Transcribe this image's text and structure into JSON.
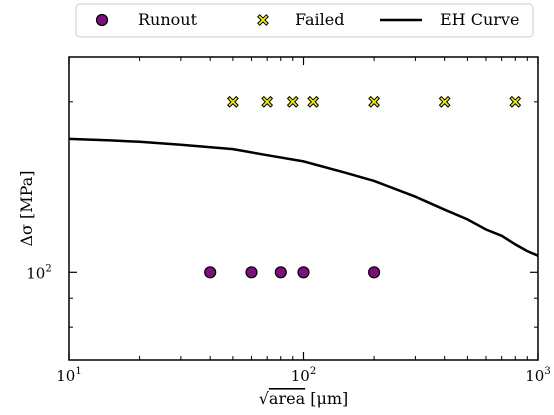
{
  "chart_data": {
    "type": "scatter",
    "x_scale": "log",
    "y_scale": "log",
    "xlim": [
      10,
      1000
    ],
    "ylim": [
      70,
      240
    ],
    "xlabel_prefix": "√",
    "xlabel_main": "area",
    "xlabel_unit": " [μm]",
    "ylabel": "Δσ [MPa]",
    "grid": false,
    "legend_position": "top, outside plot",
    "x_ticks": [
      {
        "value": 10,
        "base": "10",
        "exp": "1"
      },
      {
        "value": 100,
        "base": "10",
        "exp": "2"
      },
      {
        "value": 1000,
        "base": "10",
        "exp": "3"
      }
    ],
    "y_ticks": [
      {
        "value": 100,
        "base": "10",
        "exp": "2"
      }
    ],
    "series": [
      {
        "name": "Runout",
        "marker": "circle",
        "color": "#7b0f7b",
        "points": [
          {
            "x": 40,
            "y": 100
          },
          {
            "x": 60,
            "y": 100
          },
          {
            "x": 80,
            "y": 100
          },
          {
            "x": 100,
            "y": 100
          },
          {
            "x": 200,
            "y": 100
          }
        ]
      },
      {
        "name": "Failed",
        "marker": "x",
        "color": "#f2f20d",
        "points": [
          {
            "x": 50,
            "y": 200
          },
          {
            "x": 70,
            "y": 200
          },
          {
            "x": 90,
            "y": 200
          },
          {
            "x": 110,
            "y": 200
          },
          {
            "x": 200,
            "y": 200
          },
          {
            "x": 400,
            "y": 200
          },
          {
            "x": 800,
            "y": 200
          }
        ]
      },
      {
        "name": "EH Curve",
        "marker": "line",
        "color": "#000000",
        "points": [
          {
            "x": 10,
            "y": 172
          },
          {
            "x": 15,
            "y": 171
          },
          {
            "x": 20,
            "y": 170
          },
          {
            "x": 30,
            "y": 168
          },
          {
            "x": 50,
            "y": 165
          },
          {
            "x": 70,
            "y": 161
          },
          {
            "x": 100,
            "y": 157
          },
          {
            "x": 150,
            "y": 150
          },
          {
            "x": 200,
            "y": 145
          },
          {
            "x": 300,
            "y": 136
          },
          {
            "x": 400,
            "y": 129
          },
          {
            "x": 500,
            "y": 124
          },
          {
            "x": 600,
            "y": 119
          },
          {
            "x": 700,
            "y": 116
          },
          {
            "x": 800,
            "y": 112
          },
          {
            "x": 900,
            "y": 109
          },
          {
            "x": 1000,
            "y": 107
          }
        ]
      }
    ]
  }
}
